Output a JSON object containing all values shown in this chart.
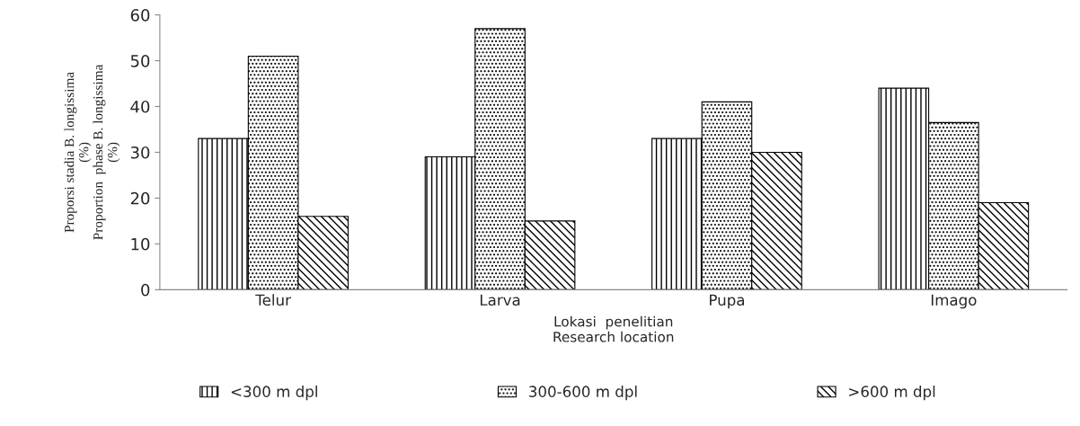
{
  "chart_data": {
    "type": "bar",
    "categories": [
      "Telur",
      "Larva",
      "Pupa",
      "Imago"
    ],
    "series": [
      {
        "name": "<300 m dpl",
        "color": "#000000",
        "values": [
          33,
          29,
          33,
          44
        ]
      },
      {
        "name": "300-600 m dpl",
        "color": "#000000",
        "values": [
          51,
          57,
          41,
          36.5
        ]
      },
      {
        "name": ">600 m dpl",
        "color": "#000000",
        "values": [
          16,
          15,
          30,
          19
        ]
      }
    ],
    "ylabel": "Proporsi stadia B. longissima\n(%)\nProportion  phase B. longissima\n(%)",
    "xlabel": "Lokasi  penelitian\nResearch location",
    "ylim": [
      0,
      60
    ],
    "yticks": [
      0,
      10,
      20,
      30,
      40,
      50,
      60
    ],
    "grid": false,
    "legend": "bottom"
  }
}
